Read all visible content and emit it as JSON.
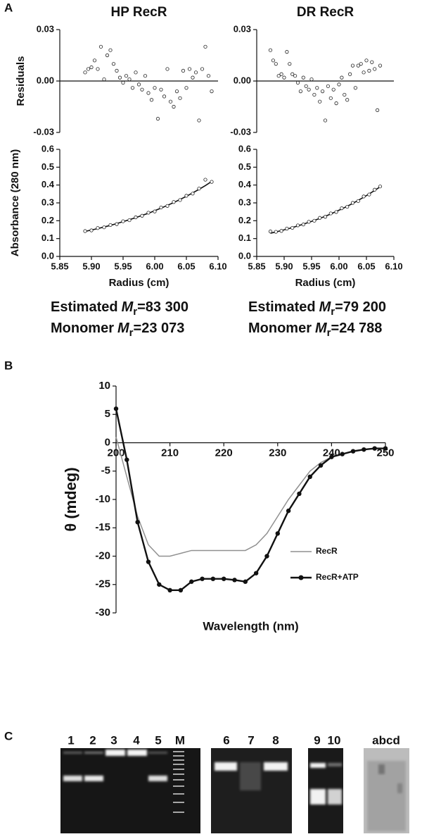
{
  "panels": [
    "A",
    "B",
    "C"
  ],
  "chart_data": [
    {
      "type": "scatter",
      "title": "HP RecR",
      "y_label": "Residuals",
      "xlim": [
        5.85,
        6.1
      ],
      "ylim": [
        -0.03,
        0.03
      ],
      "yticks": [
        -0.03,
        {
          "value": 0,
          "label": "0.00"
        },
        0.03
      ],
      "x": [
        5.89,
        5.895,
        5.9,
        5.905,
        5.91,
        5.915,
        5.92,
        5.925,
        5.93,
        5.935,
        5.94,
        5.945,
        5.95,
        5.955,
        5.96,
        5.965,
        5.97,
        5.975,
        5.98,
        5.985,
        5.99,
        5.995,
        6.0,
        6.005,
        6.01,
        6.015,
        6.02,
        6.025,
        6.03,
        6.035,
        6.04,
        6.045,
        6.05,
        6.055,
        6.06,
        6.065,
        6.07,
        6.075,
        6.08,
        6.085,
        6.09
      ],
      "values": [
        0.005,
        0.007,
        0.008,
        0.012,
        0.007,
        0.02,
        0.001,
        0.015,
        0.018,
        0.01,
        0.006,
        0.002,
        -0.001,
        0.003,
        0.001,
        -0.004,
        0.005,
        -0.002,
        -0.005,
        0.003,
        -0.007,
        -0.011,
        -0.004,
        -0.022,
        -0.005,
        -0.009,
        0.007,
        -0.012,
        -0.015,
        -0.006,
        -0.01,
        0.006,
        -0.004,
        0.007,
        0.002,
        0.005,
        -0.023,
        0.007,
        0.02,
        0.003,
        -0.006
      ]
    },
    {
      "type": "scatter",
      "title": "DR RecR",
      "xlim": [
        5.85,
        6.1
      ],
      "ylim": [
        -0.03,
        0.03
      ],
      "yticks": [
        -0.03,
        {
          "value": 0,
          "label": "0.00"
        },
        0.03
      ],
      "x": [
        5.875,
        5.88,
        5.885,
        5.89,
        5.895,
        5.9,
        5.905,
        5.91,
        5.915,
        5.92,
        5.925,
        5.93,
        5.935,
        5.94,
        5.945,
        5.95,
        5.955,
        5.96,
        5.965,
        5.97,
        5.975,
        5.98,
        5.985,
        5.99,
        5.995,
        6.0,
        6.005,
        6.01,
        6.015,
        6.02,
        6.025,
        6.03,
        6.035,
        6.04,
        6.045,
        6.05,
        6.055,
        6.06,
        6.065,
        6.07,
        6.075
      ],
      "values": [
        0.018,
        0.012,
        0.01,
        0.003,
        0.004,
        0.002,
        0.017,
        0.01,
        0.004,
        0.003,
        -0.001,
        -0.006,
        0.002,
        -0.003,
        -0.005,
        0.001,
        -0.008,
        -0.004,
        -0.012,
        -0.006,
        -0.023,
        -0.003,
        -0.01,
        -0.005,
        -0.013,
        -0.002,
        0.002,
        -0.008,
        -0.011,
        0.004,
        0.009,
        -0.004,
        0.009,
        0.01,
        0.005,
        0.012,
        0.006,
        0.011,
        0.007,
        -0.017,
        0.009
      ]
    },
    {
      "type": "scatter",
      "y_label": "Absorbance (280 nm)",
      "x_label": "Radius (cm)",
      "xlim": [
        5.85,
        6.1
      ],
      "ylim": [
        0,
        0.6
      ],
      "xticks": [
        5.85,
        {
          "value": 5.9,
          "label": "5.90"
        },
        5.95,
        {
          "value": 6,
          "label": "6.00"
        },
        6.05,
        {
          "value": 6.1,
          "label": "6.10"
        }
      ],
      "yticks": [
        {
          "value": 0,
          "label": "0.0"
        },
        0.1,
        0.2,
        0.3,
        0.4,
        0.5,
        0.6
      ],
      "x": [
        5.89,
        5.9,
        5.91,
        5.92,
        5.93,
        5.94,
        5.95,
        5.96,
        5.97,
        5.98,
        5.99,
        6.0,
        6.01,
        6.02,
        6.03,
        6.04,
        6.05,
        6.06,
        6.07,
        6.08,
        6.09
      ],
      "values": [
        0.142,
        0.146,
        0.159,
        0.163,
        0.176,
        0.181,
        0.197,
        0.203,
        0.219,
        0.228,
        0.245,
        0.252,
        0.274,
        0.283,
        0.305,
        0.316,
        0.34,
        0.352,
        0.38,
        0.43,
        0.418
      ],
      "fit": [
        0.14,
        0.148,
        0.156,
        0.165,
        0.174,
        0.184,
        0.195,
        0.206,
        0.217,
        0.23,
        0.242,
        0.256,
        0.271,
        0.286,
        0.302,
        0.319,
        0.337,
        0.356,
        0.376,
        0.397,
        0.42
      ]
    },
    {
      "type": "scatter",
      "x_label": "Radius (cm)",
      "xlim": [
        5.85,
        6.1
      ],
      "ylim": [
        0,
        0.6
      ],
      "xticks": [
        5.85,
        {
          "value": 5.9,
          "label": "5.90"
        },
        5.95,
        {
          "value": 6,
          "label": "6.00"
        },
        6.05,
        {
          "value": 6.1,
          "label": "6.10"
        }
      ],
      "yticks": [
        {
          "value": 0,
          "label": "0.0"
        },
        0.1,
        0.2,
        0.3,
        0.4,
        0.5,
        0.6
      ],
      "x": [
        5.875,
        5.885,
        5.895,
        5.905,
        5.915,
        5.925,
        5.935,
        5.945,
        5.955,
        5.965,
        5.975,
        5.985,
        5.995,
        6.005,
        6.015,
        6.025,
        6.035,
        6.045,
        6.055,
        6.065,
        6.075
      ],
      "values": [
        0.14,
        0.138,
        0.143,
        0.156,
        0.16,
        0.174,
        0.179,
        0.194,
        0.2,
        0.216,
        0.222,
        0.241,
        0.249,
        0.27,
        0.278,
        0.3,
        0.31,
        0.336,
        0.347,
        0.374,
        0.392
      ],
      "fit": [
        0.13,
        0.137,
        0.145,
        0.153,
        0.162,
        0.171,
        0.181,
        0.191,
        0.202,
        0.213,
        0.225,
        0.238,
        0.252,
        0.266,
        0.281,
        0.297,
        0.314,
        0.332,
        0.35,
        0.37,
        0.39
      ]
    },
    {
      "type": "line",
      "x_label": "Wavelength (nm)",
      "y_label": "θ (mdeg)",
      "xlim": [
        200,
        250
      ],
      "ylim": [
        -30,
        10
      ],
      "xticks": [
        200,
        210,
        220,
        230,
        240,
        250
      ],
      "yticks": [
        -30,
        -25,
        -20,
        -15,
        -10,
        -5,
        0,
        5,
        10
      ],
      "legend": "lower right",
      "x": [
        200,
        202,
        204,
        206,
        208,
        210,
        212,
        214,
        216,
        218,
        220,
        222,
        224,
        226,
        228,
        230,
        232,
        234,
        236,
        238,
        240,
        242,
        244,
        246,
        248,
        250
      ],
      "series": [
        {
          "name": "RecR",
          "color": "#909090",
          "marker": "none",
          "values": [
            1,
            -6,
            -13,
            -18,
            -20,
            -20,
            -19.5,
            -19,
            -19,
            -19,
            -19,
            -19,
            -19,
            -18,
            -16,
            -13,
            -10,
            -7.5,
            -5,
            -3.5,
            -2.5,
            -2,
            -1.5,
            -1.2,
            -1,
            -1
          ]
        },
        {
          "name": "RecR+ATP",
          "color": "#111111",
          "marker": "circle",
          "values": [
            6,
            -3,
            -14,
            -21,
            -25,
            -26,
            -26,
            -24.5,
            -24,
            -24,
            -24,
            -24.2,
            -24.5,
            -23,
            -20,
            -16,
            -12,
            -9,
            -6,
            -4,
            -2.5,
            -2,
            -1.5,
            -1.2,
            -1,
            -1
          ]
        }
      ]
    }
  ],
  "mr_labels": [
    {
      "prefix": "Estimated",
      "symbol": "M",
      "subscript": "r",
      "value": "=83 300"
    },
    {
      "prefix": "Monomer",
      "symbol": "M",
      "subscript": "r",
      "value": "=23 073"
    },
    {
      "prefix": "Estimated",
      "symbol": "M",
      "subscript": "r",
      "value": "=79 200"
    },
    {
      "prefix": "Monomer",
      "symbol": "M",
      "subscript": "r",
      "value": "=24 788"
    }
  ],
  "gels": [
    {
      "lanes": [
        "1",
        "2",
        "3",
        "4",
        "5",
        "M"
      ]
    },
    {
      "lanes": [
        "6",
        "7",
        "8"
      ]
    },
    {
      "lanes": [
        "9",
        "10"
      ]
    },
    {
      "lanes": [
        "abcd"
      ]
    }
  ]
}
